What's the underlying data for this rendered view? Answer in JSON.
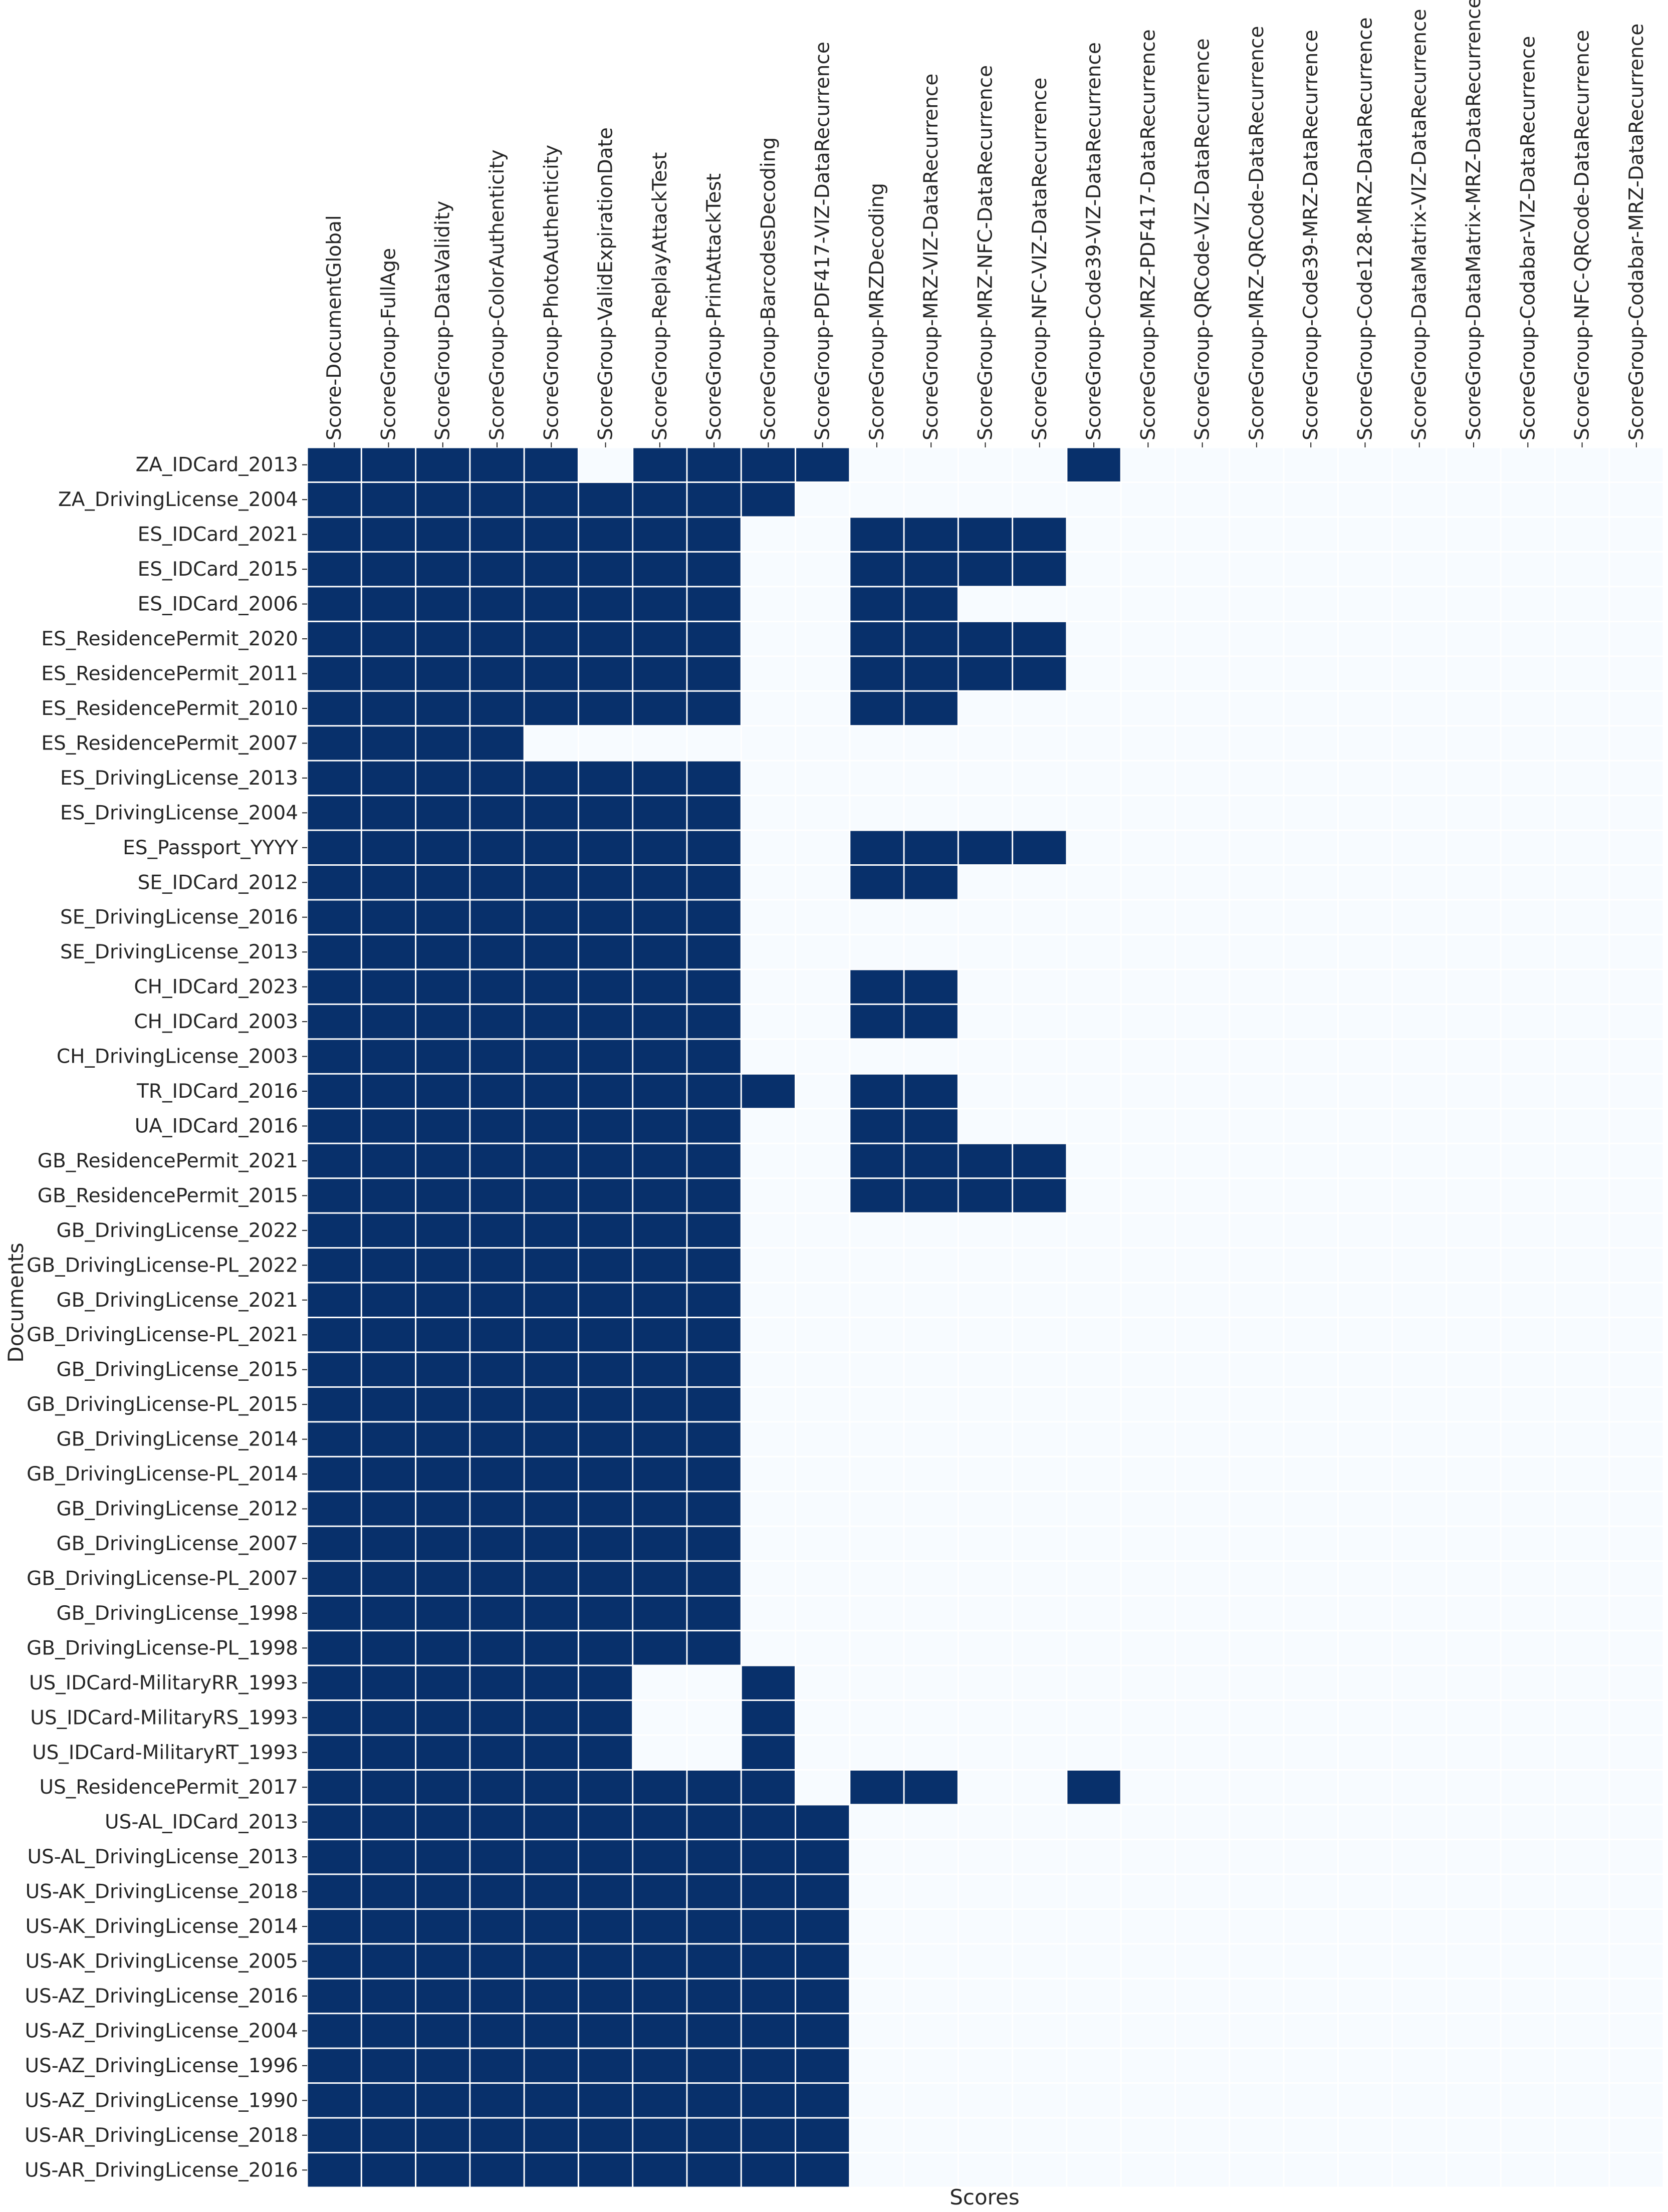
{
  "chart_data": {
    "type": "heatmap",
    "title": "",
    "xlabel": "Scores",
    "ylabel": "Documents",
    "colors": {
      "on": "#08306b",
      "off": "#f7fbff",
      "grid": "#ffffff"
    },
    "x": [
      "Score-DocumentGlobal",
      "ScoreGroup-FullAge",
      "ScoreGroup-DataValidity",
      "ScoreGroup-ColorAuthenticity",
      "ScoreGroup-PhotoAuthenticity",
      "ScoreGroup-ValidExpirationDate",
      "ScoreGroup-ReplayAttackTest",
      "ScoreGroup-PrintAttackTest",
      "ScoreGroup-BarcodesDecoding",
      "ScoreGroup-PDF417-VIZ-DataRecurrence",
      "ScoreGroup-MRZDecoding",
      "ScoreGroup-MRZ-VIZ-DataRecurrence",
      "ScoreGroup-MRZ-NFC-DataRecurrence",
      "ScoreGroup-NFC-VIZ-DataRecurrence",
      "ScoreGroup-Code39-VIZ-DataRecurrence",
      "ScoreGroup-MRZ-PDF417-DataRecurrence",
      "ScoreGroup-QRCode-VIZ-DataRecurrence",
      "ScoreGroup-MRZ-QRCode-DataRecurrence",
      "ScoreGroup-Code39-MRZ-DataRecurrence",
      "ScoreGroup-Code128-MRZ-DataRecurrence",
      "ScoreGroup-DataMatrix-VIZ-DataRecurrence",
      "ScoreGroup-DataMatrix-MRZ-DataRecurrence",
      "ScoreGroup-Codabar-VIZ-DataRecurrence",
      "ScoreGroup-NFC-QRCode-DataRecurrence",
      "ScoreGroup-Codabar-MRZ-DataRecurrence"
    ],
    "y": [
      "ZA_IDCard_2013",
      "ZA_DrivingLicense_2004",
      "ES_IDCard_2021",
      "ES_IDCard_2015",
      "ES_IDCard_2006",
      "ES_ResidencePermit_2020",
      "ES_ResidencePermit_2011",
      "ES_ResidencePermit_2010",
      "ES_ResidencePermit_2007",
      "ES_DrivingLicense_2013",
      "ES_DrivingLicense_2004",
      "ES_Passport_YYYY",
      "SE_IDCard_2012",
      "SE_DrivingLicense_2016",
      "SE_DrivingLicense_2013",
      "CH_IDCard_2023",
      "CH_IDCard_2003",
      "CH_DrivingLicense_2003",
      "TR_IDCard_2016",
      "UA_IDCard_2016",
      "GB_ResidencePermit_2021",
      "GB_ResidencePermit_2015",
      "GB_DrivingLicense_2022",
      "GB_DrivingLicense-PL_2022",
      "GB_DrivingLicense_2021",
      "GB_DrivingLicense-PL_2021",
      "GB_DrivingLicense_2015",
      "GB_DrivingLicense-PL_2015",
      "GB_DrivingLicense_2014",
      "GB_DrivingLicense-PL_2014",
      "GB_DrivingLicense_2012",
      "GB_DrivingLicense_2007",
      "GB_DrivingLicense-PL_2007",
      "GB_DrivingLicense_1998",
      "GB_DrivingLicense-PL_1998",
      "US_IDCard-MilitaryRR_1993",
      "US_IDCard-MilitaryRS_1993",
      "US_IDCard-MilitaryRT_1993",
      "US_ResidencePermit_2017",
      "US-AL_IDCard_2013",
      "US-AL_DrivingLicense_2013",
      "US-AK_DrivingLicense_2018",
      "US-AK_DrivingLicense_2014",
      "US-AK_DrivingLicense_2005",
      "US-AZ_DrivingLicense_2016",
      "US-AZ_DrivingLicense_2004",
      "US-AZ_DrivingLicense_1996",
      "US-AZ_DrivingLicense_1990",
      "US-AR_DrivingLicense_2018",
      "US-AR_DrivingLicense_2016"
    ],
    "values": [
      [
        1,
        1,
        1,
        1,
        1,
        0,
        1,
        1,
        1,
        1,
        0,
        0,
        0,
        0,
        1,
        0,
        0,
        0,
        0,
        0,
        0,
        0,
        0,
        0,
        0
      ],
      [
        1,
        1,
        1,
        1,
        1,
        1,
        1,
        1,
        1,
        0,
        0,
        0,
        0,
        0,
        0,
        0,
        0,
        0,
        0,
        0,
        0,
        0,
        0,
        0,
        0
      ],
      [
        1,
        1,
        1,
        1,
        1,
        1,
        1,
        1,
        0,
        0,
        1,
        1,
        1,
        1,
        0,
        0,
        0,
        0,
        0,
        0,
        0,
        0,
        0,
        0,
        0
      ],
      [
        1,
        1,
        1,
        1,
        1,
        1,
        1,
        1,
        0,
        0,
        1,
        1,
        1,
        1,
        0,
        0,
        0,
        0,
        0,
        0,
        0,
        0,
        0,
        0,
        0
      ],
      [
        1,
        1,
        1,
        1,
        1,
        1,
        1,
        1,
        0,
        0,
        1,
        1,
        0,
        0,
        0,
        0,
        0,
        0,
        0,
        0,
        0,
        0,
        0,
        0,
        0
      ],
      [
        1,
        1,
        1,
        1,
        1,
        1,
        1,
        1,
        0,
        0,
        1,
        1,
        1,
        1,
        0,
        0,
        0,
        0,
        0,
        0,
        0,
        0,
        0,
        0,
        0
      ],
      [
        1,
        1,
        1,
        1,
        1,
        1,
        1,
        1,
        0,
        0,
        1,
        1,
        1,
        1,
        0,
        0,
        0,
        0,
        0,
        0,
        0,
        0,
        0,
        0,
        0
      ],
      [
        1,
        1,
        1,
        1,
        1,
        1,
        1,
        1,
        0,
        0,
        1,
        1,
        0,
        0,
        0,
        0,
        0,
        0,
        0,
        0,
        0,
        0,
        0,
        0,
        0
      ],
      [
        1,
        1,
        1,
        1,
        0,
        0,
        0,
        0,
        0,
        0,
        0,
        0,
        0,
        0,
        0,
        0,
        0,
        0,
        0,
        0,
        0,
        0,
        0,
        0,
        0
      ],
      [
        1,
        1,
        1,
        1,
        1,
        1,
        1,
        1,
        0,
        0,
        0,
        0,
        0,
        0,
        0,
        0,
        0,
        0,
        0,
        0,
        0,
        0,
        0,
        0,
        0
      ],
      [
        1,
        1,
        1,
        1,
        1,
        1,
        1,
        1,
        0,
        0,
        0,
        0,
        0,
        0,
        0,
        0,
        0,
        0,
        0,
        0,
        0,
        0,
        0,
        0,
        0
      ],
      [
        1,
        1,
        1,
        1,
        1,
        1,
        1,
        1,
        0,
        0,
        1,
        1,
        1,
        1,
        0,
        0,
        0,
        0,
        0,
        0,
        0,
        0,
        0,
        0,
        0
      ],
      [
        1,
        1,
        1,
        1,
        1,
        1,
        1,
        1,
        0,
        0,
        1,
        1,
        0,
        0,
        0,
        0,
        0,
        0,
        0,
        0,
        0,
        0,
        0,
        0,
        0
      ],
      [
        1,
        1,
        1,
        1,
        1,
        1,
        1,
        1,
        0,
        0,
        0,
        0,
        0,
        0,
        0,
        0,
        0,
        0,
        0,
        0,
        0,
        0,
        0,
        0,
        0
      ],
      [
        1,
        1,
        1,
        1,
        1,
        1,
        1,
        1,
        0,
        0,
        0,
        0,
        0,
        0,
        0,
        0,
        0,
        0,
        0,
        0,
        0,
        0,
        0,
        0,
        0
      ],
      [
        1,
        1,
        1,
        1,
        1,
        1,
        1,
        1,
        0,
        0,
        1,
        1,
        0,
        0,
        0,
        0,
        0,
        0,
        0,
        0,
        0,
        0,
        0,
        0,
        0
      ],
      [
        1,
        1,
        1,
        1,
        1,
        1,
        1,
        1,
        0,
        0,
        1,
        1,
        0,
        0,
        0,
        0,
        0,
        0,
        0,
        0,
        0,
        0,
        0,
        0,
        0
      ],
      [
        1,
        1,
        1,
        1,
        1,
        1,
        1,
        1,
        0,
        0,
        0,
        0,
        0,
        0,
        0,
        0,
        0,
        0,
        0,
        0,
        0,
        0,
        0,
        0,
        0
      ],
      [
        1,
        1,
        1,
        1,
        1,
        1,
        1,
        1,
        1,
        0,
        1,
        1,
        0,
        0,
        0,
        0,
        0,
        0,
        0,
        0,
        0,
        0,
        0,
        0,
        0
      ],
      [
        1,
        1,
        1,
        1,
        1,
        1,
        1,
        1,
        0,
        0,
        1,
        1,
        0,
        0,
        0,
        0,
        0,
        0,
        0,
        0,
        0,
        0,
        0,
        0,
        0
      ],
      [
        1,
        1,
        1,
        1,
        1,
        1,
        1,
        1,
        0,
        0,
        1,
        1,
        1,
        1,
        0,
        0,
        0,
        0,
        0,
        0,
        0,
        0,
        0,
        0,
        0
      ],
      [
        1,
        1,
        1,
        1,
        1,
        1,
        1,
        1,
        0,
        0,
        1,
        1,
        1,
        1,
        0,
        0,
        0,
        0,
        0,
        0,
        0,
        0,
        0,
        0,
        0
      ],
      [
        1,
        1,
        1,
        1,
        1,
        1,
        1,
        1,
        0,
        0,
        0,
        0,
        0,
        0,
        0,
        0,
        0,
        0,
        0,
        0,
        0,
        0,
        0,
        0,
        0
      ],
      [
        1,
        1,
        1,
        1,
        1,
        1,
        1,
        1,
        0,
        0,
        0,
        0,
        0,
        0,
        0,
        0,
        0,
        0,
        0,
        0,
        0,
        0,
        0,
        0,
        0
      ],
      [
        1,
        1,
        1,
        1,
        1,
        1,
        1,
        1,
        0,
        0,
        0,
        0,
        0,
        0,
        0,
        0,
        0,
        0,
        0,
        0,
        0,
        0,
        0,
        0,
        0
      ],
      [
        1,
        1,
        1,
        1,
        1,
        1,
        1,
        1,
        0,
        0,
        0,
        0,
        0,
        0,
        0,
        0,
        0,
        0,
        0,
        0,
        0,
        0,
        0,
        0,
        0
      ],
      [
        1,
        1,
        1,
        1,
        1,
        1,
        1,
        1,
        0,
        0,
        0,
        0,
        0,
        0,
        0,
        0,
        0,
        0,
        0,
        0,
        0,
        0,
        0,
        0,
        0
      ],
      [
        1,
        1,
        1,
        1,
        1,
        1,
        1,
        1,
        0,
        0,
        0,
        0,
        0,
        0,
        0,
        0,
        0,
        0,
        0,
        0,
        0,
        0,
        0,
        0,
        0
      ],
      [
        1,
        1,
        1,
        1,
        1,
        1,
        1,
        1,
        0,
        0,
        0,
        0,
        0,
        0,
        0,
        0,
        0,
        0,
        0,
        0,
        0,
        0,
        0,
        0,
        0
      ],
      [
        1,
        1,
        1,
        1,
        1,
        1,
        1,
        1,
        0,
        0,
        0,
        0,
        0,
        0,
        0,
        0,
        0,
        0,
        0,
        0,
        0,
        0,
        0,
        0,
        0
      ],
      [
        1,
        1,
        1,
        1,
        1,
        1,
        1,
        1,
        0,
        0,
        0,
        0,
        0,
        0,
        0,
        0,
        0,
        0,
        0,
        0,
        0,
        0,
        0,
        0,
        0
      ],
      [
        1,
        1,
        1,
        1,
        1,
        1,
        1,
        1,
        0,
        0,
        0,
        0,
        0,
        0,
        0,
        0,
        0,
        0,
        0,
        0,
        0,
        0,
        0,
        0,
        0
      ],
      [
        1,
        1,
        1,
        1,
        1,
        1,
        1,
        1,
        0,
        0,
        0,
        0,
        0,
        0,
        0,
        0,
        0,
        0,
        0,
        0,
        0,
        0,
        0,
        0,
        0
      ],
      [
        1,
        1,
        1,
        1,
        1,
        1,
        1,
        1,
        0,
        0,
        0,
        0,
        0,
        0,
        0,
        0,
        0,
        0,
        0,
        0,
        0,
        0,
        0,
        0,
        0
      ],
      [
        1,
        1,
        1,
        1,
        1,
        1,
        1,
        1,
        0,
        0,
        0,
        0,
        0,
        0,
        0,
        0,
        0,
        0,
        0,
        0,
        0,
        0,
        0,
        0,
        0
      ],
      [
        1,
        1,
        1,
        1,
        1,
        1,
        0,
        0,
        1,
        0,
        0,
        0,
        0,
        0,
        0,
        0,
        0,
        0,
        0,
        0,
        0,
        0,
        0,
        0,
        0
      ],
      [
        1,
        1,
        1,
        1,
        1,
        1,
        0,
        0,
        1,
        0,
        0,
        0,
        0,
        0,
        0,
        0,
        0,
        0,
        0,
        0,
        0,
        0,
        0,
        0,
        0
      ],
      [
        1,
        1,
        1,
        1,
        1,
        1,
        0,
        0,
        1,
        0,
        0,
        0,
        0,
        0,
        0,
        0,
        0,
        0,
        0,
        0,
        0,
        0,
        0,
        0,
        0
      ],
      [
        1,
        1,
        1,
        1,
        1,
        1,
        1,
        1,
        1,
        0,
        1,
        1,
        0,
        0,
        1,
        0,
        0,
        0,
        0,
        0,
        0,
        0,
        0,
        0,
        0
      ],
      [
        1,
        1,
        1,
        1,
        1,
        1,
        1,
        1,
        1,
        1,
        0,
        0,
        0,
        0,
        0,
        0,
        0,
        0,
        0,
        0,
        0,
        0,
        0,
        0,
        0
      ],
      [
        1,
        1,
        1,
        1,
        1,
        1,
        1,
        1,
        1,
        1,
        0,
        0,
        0,
        0,
        0,
        0,
        0,
        0,
        0,
        0,
        0,
        0,
        0,
        0,
        0
      ],
      [
        1,
        1,
        1,
        1,
        1,
        1,
        1,
        1,
        1,
        1,
        0,
        0,
        0,
        0,
        0,
        0,
        0,
        0,
        0,
        0,
        0,
        0,
        0,
        0,
        0
      ],
      [
        1,
        1,
        1,
        1,
        1,
        1,
        1,
        1,
        1,
        1,
        0,
        0,
        0,
        0,
        0,
        0,
        0,
        0,
        0,
        0,
        0,
        0,
        0,
        0,
        0
      ],
      [
        1,
        1,
        1,
        1,
        1,
        1,
        1,
        1,
        1,
        1,
        0,
        0,
        0,
        0,
        0,
        0,
        0,
        0,
        0,
        0,
        0,
        0,
        0,
        0,
        0
      ],
      [
        1,
        1,
        1,
        1,
        1,
        1,
        1,
        1,
        1,
        1,
        0,
        0,
        0,
        0,
        0,
        0,
        0,
        0,
        0,
        0,
        0,
        0,
        0,
        0,
        0
      ],
      [
        1,
        1,
        1,
        1,
        1,
        1,
        1,
        1,
        1,
        1,
        0,
        0,
        0,
        0,
        0,
        0,
        0,
        0,
        0,
        0,
        0,
        0,
        0,
        0,
        0
      ],
      [
        1,
        1,
        1,
        1,
        1,
        1,
        1,
        1,
        1,
        1,
        0,
        0,
        0,
        0,
        0,
        0,
        0,
        0,
        0,
        0,
        0,
        0,
        0,
        0,
        0
      ],
      [
        1,
        1,
        1,
        1,
        1,
        1,
        1,
        1,
        1,
        1,
        0,
        0,
        0,
        0,
        0,
        0,
        0,
        0,
        0,
        0,
        0,
        0,
        0,
        0,
        0
      ],
      [
        1,
        1,
        1,
        1,
        1,
        1,
        1,
        1,
        1,
        1,
        0,
        0,
        0,
        0,
        0,
        0,
        0,
        0,
        0,
        0,
        0,
        0,
        0,
        0,
        0
      ],
      [
        1,
        1,
        1,
        1,
        1,
        1,
        1,
        1,
        1,
        1,
        0,
        0,
        0,
        0,
        0,
        0,
        0,
        0,
        0,
        0,
        0,
        0,
        0,
        0,
        0
      ]
    ]
  }
}
